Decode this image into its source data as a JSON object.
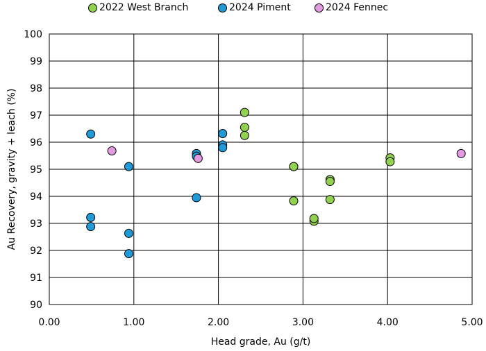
{
  "chart_data": {
    "type": "scatter",
    "title": "",
    "xlabel": "Head grade, Au (g/t)",
    "ylabel": "Au Recovery, gravity + leach (%)",
    "xlim": [
      0,
      5
    ],
    "ylim": [
      90,
      100
    ],
    "x_ticks": [
      0,
      1,
      2,
      3,
      4,
      5
    ],
    "x_tick_labels": [
      "0.00",
      "1.00",
      "2.00",
      "3.00",
      "4.00",
      "5.00"
    ],
    "y_ticks": [
      90,
      91,
      92,
      93,
      94,
      95,
      96,
      97,
      98,
      99,
      100
    ],
    "y_tick_labels": [
      "90",
      "91",
      "92",
      "93",
      "94",
      "95",
      "96",
      "97",
      "98",
      "99",
      "100"
    ],
    "grid": true,
    "legend_position": "top",
    "series": [
      {
        "name": "2022 West Branch",
        "color": "#92d050",
        "points": [
          [
            2.31,
            97.1
          ],
          [
            2.31,
            96.55
          ],
          [
            2.31,
            96.25
          ],
          [
            2.89,
            95.1
          ],
          [
            2.89,
            95.1
          ],
          [
            2.89,
            93.83
          ],
          [
            3.13,
            93.08
          ],
          [
            3.13,
            93.18
          ],
          [
            3.32,
            94.62
          ],
          [
            3.32,
            94.55
          ],
          [
            3.32,
            93.88
          ],
          [
            4.03,
            95.42
          ],
          [
            4.03,
            95.28
          ]
        ]
      },
      {
        "name": "2024 Piment",
        "color": "#1f9ad6",
        "points": [
          [
            0.49,
            96.3
          ],
          [
            0.49,
            93.22
          ],
          [
            0.49,
            92.88
          ],
          [
            0.94,
            95.1
          ],
          [
            0.94,
            92.63
          ],
          [
            0.94,
            91.88
          ],
          [
            1.74,
            95.58
          ],
          [
            1.74,
            95.48
          ],
          [
            1.74,
            93.95
          ],
          [
            2.05,
            96.32
          ],
          [
            2.05,
            95.9
          ],
          [
            2.05,
            95.8
          ]
        ]
      },
      {
        "name": "2024 Fennec",
        "color": "#e29be0",
        "points": [
          [
            0.74,
            95.68
          ],
          [
            1.76,
            95.4
          ],
          [
            4.87,
            95.58
          ]
        ]
      }
    ]
  }
}
